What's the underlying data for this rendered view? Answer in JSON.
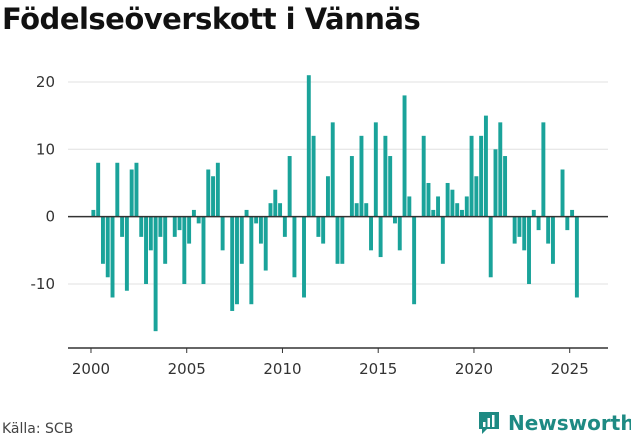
{
  "title": "Födelseöverskott i Vännäs",
  "source": "Källa: SCB",
  "brand": {
    "name": "Newsworthy",
    "icon": "newsworthy-logo-icon"
  },
  "colors": {
    "bar": "#1aa39a",
    "grid": "#e0e0e0",
    "zero": "#333333",
    "brand": "#1e8a83"
  },
  "chart_data": {
    "type": "bar",
    "frequency": "quarterly",
    "start": "2000-Q1",
    "xlim": [
      1998.8,
      2027.0
    ],
    "ylim": [
      -19.5,
      24
    ],
    "y_ticks": [
      -10,
      0,
      10,
      20
    ],
    "y_tick_labels": [
      "-10",
      "0",
      "10",
      "20"
    ],
    "x_ticks": [
      2000,
      2005,
      2010,
      2015,
      2020,
      2025
    ],
    "x_tick_labels": [
      "2000",
      "2005",
      "2010",
      "2015",
      "2020",
      "2025"
    ],
    "grid": true,
    "values": [
      1,
      8,
      -7,
      -9,
      -12,
      8,
      -3,
      -11,
      7,
      8,
      -3,
      -10,
      -5,
      -17,
      -3,
      -7,
      0,
      -3,
      -2,
      -10,
      -4,
      1,
      -1,
      -10,
      7,
      6,
      8,
      -5,
      0,
      -14,
      -13,
      -7,
      1,
      -13,
      -1,
      -4,
      -8,
      2,
      4,
      2,
      -3,
      9,
      -9,
      0,
      -12,
      21,
      12,
      -3,
      -4,
      6,
      14,
      -7,
      -7,
      0,
      9,
      2,
      12,
      2,
      -5,
      14,
      -6,
      12,
      9,
      -1,
      -5,
      18,
      3,
      -13,
      0,
      12,
      5,
      1,
      3,
      -7,
      5,
      4,
      2,
      1,
      3,
      12,
      6,
      12,
      15,
      -9,
      10,
      14,
      9,
      0,
      -4,
      -3,
      -5,
      -10,
      1,
      -2,
      14,
      -4,
      -7,
      0,
      7,
      -2,
      1,
      -12
    ]
  }
}
